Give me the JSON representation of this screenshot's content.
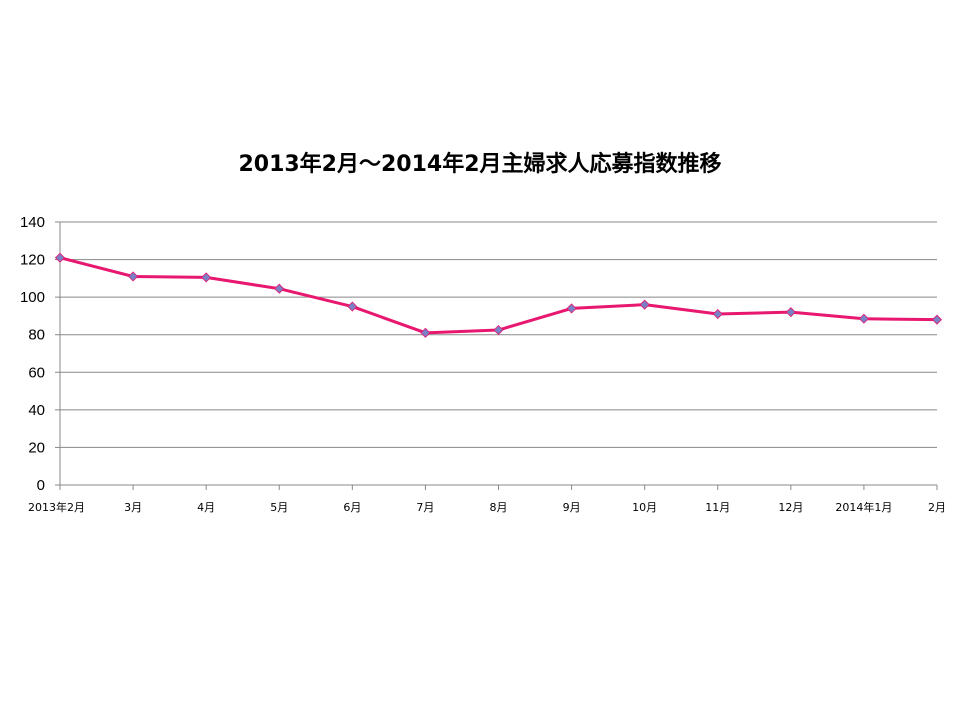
{
  "chart_data": {
    "type": "line",
    "title": "2013年2月～2014年2月主婦求人応募指数推移",
    "xlabel": "",
    "ylabel": "",
    "ylim": [
      0,
      140
    ],
    "yticks": [
      0,
      20,
      40,
      60,
      80,
      100,
      120,
      140
    ],
    "grid": true,
    "legend": "none",
    "categories": [
      "2013年2月",
      "3月",
      "4月",
      "5月",
      "6月",
      "7月",
      "8月",
      "9月",
      "10月",
      "11月",
      "12月",
      "2014年1月",
      "2月"
    ],
    "series": [
      {
        "values": [
          121,
          111,
          110.5,
          104.5,
          95,
          81,
          82.5,
          94,
          96,
          91,
          92,
          88.5,
          88
        ]
      }
    ],
    "colors": {
      "line": "#E8176F",
      "marker": "#7B7FC4",
      "grid": "#888888"
    }
  }
}
